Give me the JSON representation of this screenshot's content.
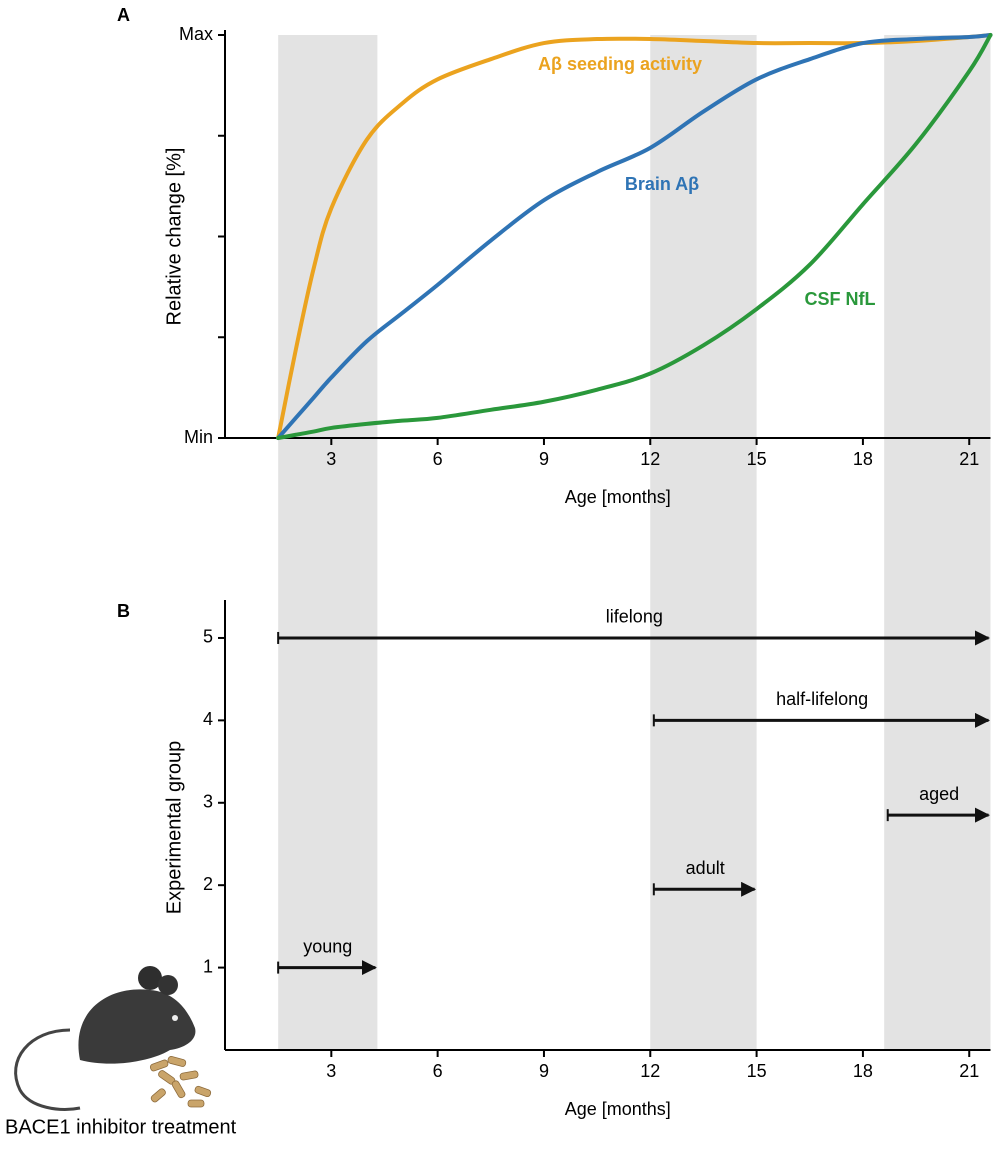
{
  "chart_data": [
    {
      "type": "line",
      "panel": "A",
      "x_label": "Age [months]",
      "y_label": "Relative change [%]",
      "x": [
        1.5,
        2,
        2.5,
        3,
        4,
        5,
        6,
        7.5,
        9,
        10.5,
        12,
        13.5,
        15,
        16.5,
        18,
        19.5,
        21,
        21.6
      ],
      "series": [
        {
          "name": "Aβ seeding activity",
          "color": "#eba31f",
          "values": [
            0,
            22,
            42,
            57,
            74,
            83,
            89,
            94,
            98,
            99,
            99,
            98.5,
            98,
            98,
            98,
            98.5,
            99.5,
            100
          ]
        },
        {
          "name": "Brain Aβ",
          "color": "#2f74b5",
          "values": [
            0,
            5,
            10,
            15,
            24,
            31,
            38,
            49,
            59,
            66,
            72,
            81,
            89,
            94,
            98,
            99,
            99.5,
            100
          ]
        },
        {
          "name": "CSF NfL",
          "color": "#2a983b",
          "values": [
            0,
            0.8,
            1.6,
            2.5,
            3.5,
            4.3,
            5,
            7,
            9,
            12,
            16,
            23,
            32,
            43,
            58,
            73,
            91,
            100
          ]
        }
      ],
      "xlim": [
        0,
        21.6
      ],
      "xticks": [
        3,
        6,
        9,
        12,
        15,
        18,
        21
      ],
      "ylim": [
        0,
        100
      ],
      "yticks": [
        {
          "value": 0,
          "label": "Min"
        },
        {
          "value": 100,
          "label": "Max"
        }
      ],
      "minor_yticks": [
        25,
        50,
        75
      ],
      "bands": [
        [
          1.5,
          4.3
        ],
        [
          12,
          15
        ],
        [
          18.6,
          21.6
        ]
      ]
    },
    {
      "type": "arrows",
      "panel": "B",
      "x_label": "Age [months]",
      "y_label": "Experimental group",
      "arrows": [
        {
          "label": "lifelong",
          "start": 1.5,
          "end": 21.6,
          "group": 5
        },
        {
          "label": "half-lifelong",
          "start": 12.1,
          "end": 21.6,
          "group": 4
        },
        {
          "label": "aged",
          "start": 18.7,
          "end": 21.6,
          "group": 2.85
        },
        {
          "label": "adult",
          "start": 12.1,
          "end": 15,
          "group": 1.95
        },
        {
          "label": "young",
          "start": 1.5,
          "end": 4.3,
          "group": 1
        }
      ],
      "xlim": [
        0,
        21.6
      ],
      "xticks": [
        3,
        6,
        9,
        12,
        15,
        18,
        21
      ],
      "ylim": [
        0,
        5.4
      ],
      "yticks": [
        1,
        2,
        3,
        4,
        5
      ],
      "bands": [
        [
          1.5,
          4.3
        ],
        [
          12,
          15
        ],
        [
          18.6,
          21.6
        ]
      ]
    }
  ],
  "caption": "BACE1 inhibitor treatment"
}
